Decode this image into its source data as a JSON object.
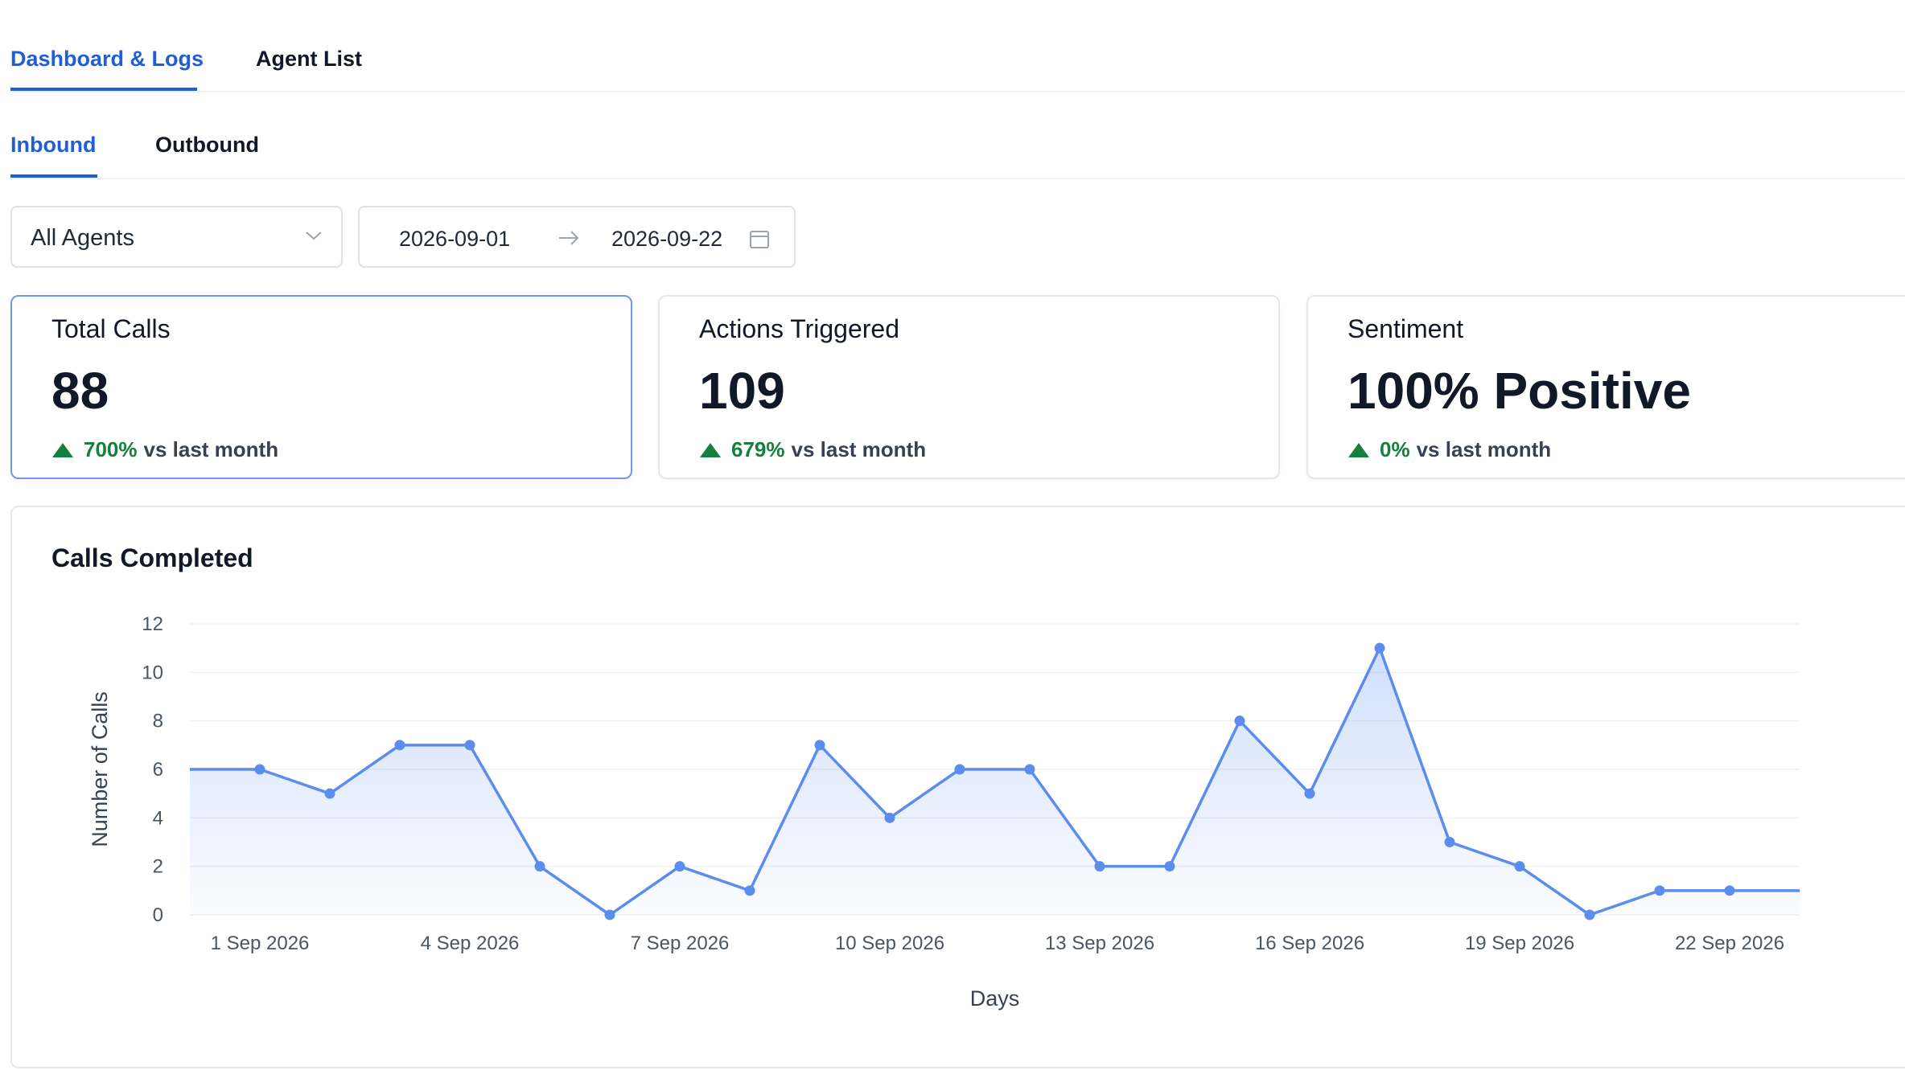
{
  "nav": {
    "tabs": [
      {
        "label": "Dashboard & Logs",
        "active": true
      },
      {
        "label": "Agent List",
        "active": false
      }
    ]
  },
  "subnav": {
    "tabs": [
      {
        "label": "Inbound",
        "active": true
      },
      {
        "label": "Outbound",
        "active": false
      }
    ]
  },
  "filters": {
    "agent_select": {
      "value": "All Agents",
      "icon": "chevron-down-icon"
    },
    "date_range": {
      "start": "2026-09-01",
      "end": "2026-09-22",
      "separator_icon": "arrow-right-icon",
      "calendar_icon": "calendar-icon"
    }
  },
  "stats": [
    {
      "title": "Total Calls",
      "value": "88",
      "delta": "700%",
      "delta_suffix": "vs last month",
      "trend": "up"
    },
    {
      "title": "Actions Triggered",
      "value": "109",
      "delta": "679%",
      "delta_suffix": "vs last month",
      "trend": "up"
    },
    {
      "title": "Sentiment",
      "value": "100% Positive",
      "delta": "0%",
      "delta_suffix": "vs last month",
      "trend": "up"
    }
  ],
  "colors": {
    "accent": "#1f5fd6",
    "line": "#5b8def",
    "positive": "#15803d"
  },
  "chart_data": {
    "type": "area",
    "title": "Calls Completed",
    "xlabel": "Days",
    "ylabel": "Number of Calls",
    "ylim": [
      0,
      12
    ],
    "yticks": [
      0,
      2,
      4,
      6,
      8,
      10,
      12
    ],
    "grid": true,
    "x": [
      "2026-08-31",
      "2026-09-01",
      "2026-09-02",
      "2026-09-03",
      "2026-09-04",
      "2026-09-05",
      "2026-09-06",
      "2026-09-07",
      "2026-09-08",
      "2026-09-09",
      "2026-09-10",
      "2026-09-11",
      "2026-09-12",
      "2026-09-13",
      "2026-09-14",
      "2026-09-15",
      "2026-09-16",
      "2026-09-17",
      "2026-09-18",
      "2026-09-19",
      "2026-09-20",
      "2026-09-21",
      "2026-09-22",
      "2026-09-23"
    ],
    "xtick_labels": [
      "1 Sep 2026",
      "4 Sep 2026",
      "7 Sep 2026",
      "10 Sep 2026",
      "13 Sep 2026",
      "16 Sep 2026",
      "19 Sep 2026",
      "22 Sep 2026"
    ],
    "xtick_positions": [
      "2026-09-01",
      "2026-09-04",
      "2026-09-07",
      "2026-09-10",
      "2026-09-13",
      "2026-09-16",
      "2026-09-19",
      "2026-09-22"
    ],
    "series": [
      {
        "values": [
          6,
          6,
          5,
          7,
          7,
          2,
          0,
          2,
          1,
          7,
          4,
          6,
          6,
          2,
          2,
          8,
          5,
          11,
          3,
          2,
          0,
          1,
          1,
          1
        ]
      }
    ]
  }
}
